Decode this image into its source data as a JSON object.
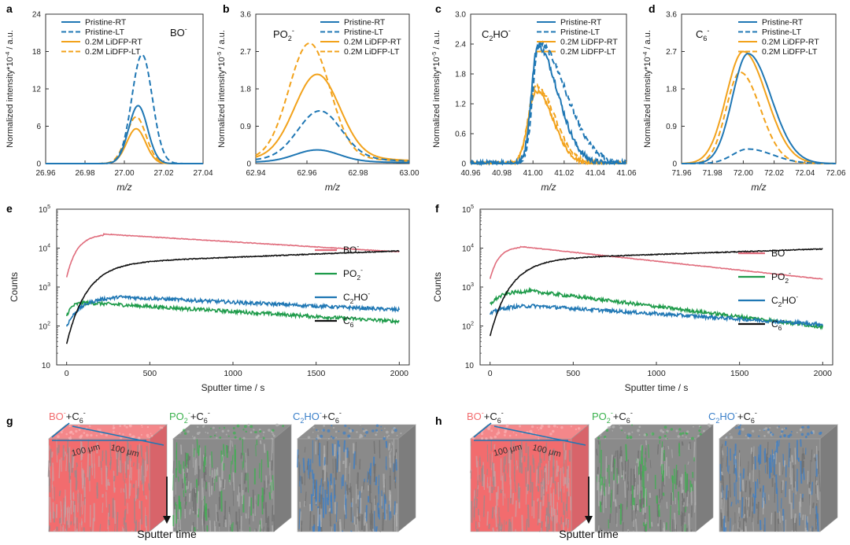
{
  "figure": {
    "panel_labels": [
      "a",
      "b",
      "c",
      "d",
      "e",
      "f",
      "g",
      "h"
    ]
  },
  "colors": {
    "blue": "#1f77b4",
    "orange": "#f2a21b",
    "red": "#e06c7c",
    "green": "#1e9b4a",
    "black": "#111111",
    "axis": "#333333"
  },
  "chart_data": [
    {
      "id": "a",
      "type": "line",
      "ion_main": "BO",
      "ion_sup": "-",
      "xlabel": "m/z",
      "ylabel": "Normalized intensity*10",
      "ylabel_exp": "-4",
      "ylabel_units": " / a.u.",
      "xlim": [
        26.96,
        27.04
      ],
      "ylim": [
        0,
        24
      ],
      "xticks": [
        "26.96",
        "26.98",
        "27.00",
        "27.02",
        "27.04"
      ],
      "yticks": [
        "0",
        "6",
        "12",
        "18",
        "24"
      ],
      "legend": [
        "Pristine-RT",
        "Pristine-LT",
        "0.2M LiDFP-RT",
        "0.2M LiDFP-LT"
      ],
      "series": [
        {
          "name": "Pristine-RT",
          "center": 27.007,
          "sigma": 0.0048,
          "amp": 9.3
        },
        {
          "name": "Pristine-LT",
          "center": 27.009,
          "sigma": 0.0052,
          "amp": 17.5
        },
        {
          "name": "0.2M LiDFP-RT",
          "center": 27.006,
          "sigma": 0.0048,
          "amp": 5.6
        },
        {
          "name": "0.2M LiDFP-LT",
          "center": 27.006,
          "sigma": 0.005,
          "amp": 7.5
        }
      ]
    },
    {
      "id": "b",
      "type": "line",
      "ion_main": "PO",
      "ion_sub": "2",
      "ion_sup": "-",
      "xlabel": "m/z",
      "ylabel": "Normalized intensity*10",
      "ylabel_exp": "-5",
      "ylabel_units": " / a.u.",
      "xlim": [
        62.94,
        63.0
      ],
      "ylim": [
        0,
        3.6
      ],
      "xticks": [
        "62.94",
        "62.96",
        "62.98",
        "63.00"
      ],
      "yticks": [
        "0",
        "0.9",
        "1.8",
        "2.7",
        "3.6"
      ],
      "legend": [
        "Pristine-RT",
        "Pristine-LT",
        "0.2M LiDFP-RT",
        "0.2M LiDFP-LT"
      ],
      "series": [
        {
          "name": "Pristine-RT",
          "center": 62.964,
          "sigma": 0.0085,
          "amp": 0.28,
          "base": 0.05
        },
        {
          "name": "Pristine-LT",
          "center": 62.965,
          "sigma": 0.0085,
          "amp": 1.15,
          "base": 0.12
        },
        {
          "name": "0.2M LiDFP-RT",
          "center": 62.964,
          "sigma": 0.0088,
          "amp": 2.0,
          "base": 0.15
        },
        {
          "name": "0.2M LiDFP-LT",
          "center": 62.961,
          "sigma": 0.008,
          "amp": 2.75,
          "base": 0.15
        }
      ]
    },
    {
      "id": "c",
      "type": "line",
      "ion_main": "C",
      "ion_sub": "2",
      "ion_main2": "HO",
      "ion_sup": "-",
      "xlabel": "m/z",
      "ylabel": "Normalized intensity*10",
      "ylabel_exp": "-5",
      "ylabel_units": " / a.u.",
      "xlim": [
        40.96,
        41.06
      ],
      "ylim": [
        0,
        3.0
      ],
      "xticks": [
        "40.96",
        "40.98",
        "41.00",
        "41.02",
        "41.04",
        "41.06"
      ],
      "yticks": [
        "0",
        "0.6",
        "1.2",
        "1.8",
        "2.4",
        "3.0"
      ],
      "legend": [
        "Pristine-RT",
        "Pristine-LT",
        "0.2M LiDFP-RT",
        "0.2M LiDFP-LT"
      ],
      "series": [
        {
          "name": "Pristine-RT",
          "center": 41.003,
          "sigmaL": 0.004,
          "sigmaR": 0.013,
          "amp": 2.35
        },
        {
          "name": "Pristine-LT",
          "center": 41.004,
          "sigmaL": 0.004,
          "sigmaR": 0.017,
          "amp": 2.4
        },
        {
          "name": "0.2M LiDFP-RT",
          "center": 41.002,
          "sigmaL": 0.005,
          "sigmaR": 0.011,
          "amp": 1.45
        },
        {
          "name": "0.2M LiDFP-LT",
          "center": 41.002,
          "sigmaL": 0.005,
          "sigmaR": 0.012,
          "amp": 1.55
        }
      ]
    },
    {
      "id": "d",
      "type": "line",
      "ion_main": "C",
      "ion_sub": "6",
      "ion_sup": "-",
      "xlabel": "m/z",
      "ylabel": "Normalized intensity*10",
      "ylabel_exp": "-4",
      "ylabel_units": " / a.u.",
      "xlim": [
        71.96,
        72.06
      ],
      "ylim": [
        0,
        3.6
      ],
      "xticks": [
        "71.96",
        "71.98",
        "72.00",
        "72.02",
        "72.04",
        "72.06"
      ],
      "yticks": [
        "0",
        "0.9",
        "1.8",
        "2.7",
        "3.6"
      ],
      "legend": [
        "Pristine-RT",
        "Pristine-LT",
        "0.2M LiDFP-RT",
        "0.2M LiDFP-LT"
      ],
      "series": [
        {
          "name": "Pristine-RT",
          "center": 72.003,
          "sigmaL": 0.01,
          "sigmaR": 0.015,
          "amp": 2.65
        },
        {
          "name": "Pristine-LT",
          "center": 72.003,
          "sigmaL": 0.01,
          "sigmaR": 0.016,
          "amp": 0.35
        },
        {
          "name": "0.2M LiDFP-RT",
          "center": 72.0,
          "sigmaL": 0.011,
          "sigmaR": 0.015,
          "amp": 2.7
        },
        {
          "name": "0.2M LiDFP-LT",
          "center": 71.998,
          "sigmaL": 0.009,
          "sigmaR": 0.013,
          "amp": 2.2
        }
      ]
    },
    {
      "id": "e",
      "type": "line",
      "yscale": "log",
      "xlabel": "Sputter time / s",
      "ylabel": "Counts",
      "xlim": [
        -60,
        2060
      ],
      "ylim_exp": [
        1,
        5
      ],
      "xticks": [
        "0",
        "500",
        "1000",
        "1500",
        "2000"
      ],
      "yticks": [
        {
          "base": "10",
          "exp": "5"
        },
        {
          "base": "10",
          "exp": "4"
        },
        {
          "base": "10",
          "exp": "3"
        },
        {
          "base": "10",
          "exp": "2"
        },
        {
          "base": "10",
          "exp": ""
        }
      ],
      "series": [
        {
          "name": "BO-",
          "label_main": "BO",
          "label_sup": "-",
          "color": "red",
          "start": 1800,
          "peak": 23000,
          "peak_t": 220,
          "end": 8000
        },
        {
          "name": "PO2-",
          "label_main": "PO",
          "label_sub": "2",
          "label_sup": "-",
          "color": "green",
          "start": 180,
          "peak": 400,
          "peak_t": 100,
          "end": 130
        },
        {
          "name": "C2HO-",
          "label_main": "C",
          "label_sub": "2",
          "label_main2": "HO",
          "label_sup": "-",
          "color": "blue",
          "start": 100,
          "peak": 560,
          "peak_t": 300,
          "end": 260
        },
        {
          "name": "C6-",
          "label_main": "C",
          "label_sub": "6",
          "label_sup": "-",
          "color": "black",
          "start": 35,
          "mid_t": 500,
          "mid": 4000,
          "end": 8500
        }
      ]
    },
    {
      "id": "f",
      "type": "line",
      "yscale": "log",
      "xlabel": "Sputter time / s",
      "ylabel": "Counts",
      "xlim": [
        -60,
        2060
      ],
      "ylim_exp": [
        1,
        5
      ],
      "xticks": [
        "0",
        "500",
        "1000",
        "1500",
        "2000"
      ],
      "yticks": [
        {
          "base": "10",
          "exp": "5"
        },
        {
          "base": "10",
          "exp": "4"
        },
        {
          "base": "10",
          "exp": "3"
        },
        {
          "base": "10",
          "exp": "2"
        },
        {
          "base": "10",
          "exp": ""
        }
      ],
      "series": [
        {
          "name": "BO-",
          "label_main": "BO",
          "label_sup": "-",
          "color": "red",
          "start": 1600,
          "peak": 11000,
          "peak_t": 180,
          "end": 1600
        },
        {
          "name": "PO2-",
          "label_main": "PO",
          "label_sub": "2",
          "label_sup": "-",
          "color": "green",
          "start": 350,
          "peak": 800,
          "peak_t": 230,
          "end": 95
        },
        {
          "name": "C2HO-",
          "label_main": "C",
          "label_sub": "2",
          "label_main2": "HO",
          "label_sup": "-",
          "color": "blue",
          "start": 200,
          "peak": 330,
          "peak_t": 250,
          "end": 110
        },
        {
          "name": "C6-",
          "label_main": "C",
          "label_sub": "6",
          "label_sup": "-",
          "color": "black",
          "start": 55,
          "mid_t": 600,
          "mid": 5000,
          "end": 9500
        }
      ]
    }
  ],
  "tomography": [
    {
      "id": "g",
      "cubes": [
        {
          "label_main": "BO",
          "label_sup": "-",
          "label_plus": "+C",
          "label_sub": "6",
          "label_sup2": "-",
          "color": "red",
          "dims": [
            "100 μm",
            "100 μm"
          ]
        },
        {
          "label_main": "PO",
          "label_sub0": "2",
          "label_sup": "-",
          "label_plus": "+C",
          "label_sub": "6",
          "label_sup2": "-",
          "color": "green"
        },
        {
          "label_main": "C",
          "label_sub0": "2",
          "label_main2": "HO",
          "label_sup": "-",
          "label_plus": "+C",
          "label_sub": "6",
          "label_sup2": "-",
          "color": "blue"
        }
      ],
      "arrow_label": "Sputter time"
    },
    {
      "id": "h",
      "cubes": [
        {
          "label_main": "BO",
          "label_sup": "-",
          "label_plus": "+C",
          "label_sub": "6",
          "label_sup2": "-",
          "color": "red",
          "dims": [
            "100 μm",
            "100 μm"
          ]
        },
        {
          "label_main": "PO",
          "label_sub0": "2",
          "label_sup": "-",
          "label_plus": "+C",
          "label_sub": "6",
          "label_sup2": "-",
          "color": "green"
        },
        {
          "label_main": "C",
          "label_sub0": "2",
          "label_main2": "HO",
          "label_sup": "-",
          "label_plus": "+C",
          "label_sub": "6",
          "label_sup2": "-",
          "color": "blue"
        }
      ],
      "arrow_label": "Sputter time"
    }
  ]
}
